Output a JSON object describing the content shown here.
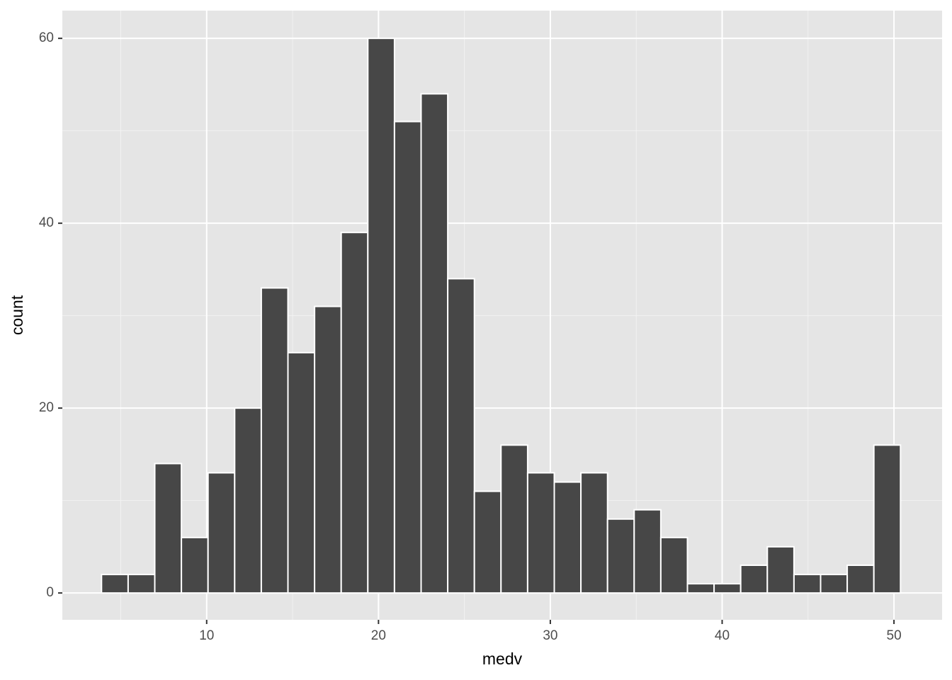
{
  "chart_data": {
    "type": "histogram",
    "x_label": "medv",
    "y_label": "count",
    "bins": [
      3.88,
      5.43,
      6.98,
      8.53,
      10.08,
      11.63,
      13.18,
      14.73,
      16.28,
      17.83,
      19.38,
      20.93,
      22.48,
      24.03,
      25.58,
      27.13,
      28.68,
      30.23,
      31.78,
      33.33,
      34.88,
      36.43,
      37.98,
      39.53,
      41.08,
      42.63,
      44.18,
      45.73,
      47.28,
      48.83,
      50.38
    ],
    "values": [
      2,
      2,
      14,
      6,
      13,
      20,
      33,
      26,
      31,
      39,
      60,
      51,
      54,
      34,
      11,
      16,
      13,
      12,
      13,
      8,
      9,
      6,
      1,
      1,
      3,
      5,
      2,
      2,
      3,
      16
    ],
    "color": "#474747",
    "xlim": [
      1.6,
      52.8
    ],
    "xticks": [
      10,
      20,
      30,
      40,
      50
    ],
    "ylim": [
      -2.9,
      63
    ],
    "yticks": [
      0,
      20,
      40,
      60
    ],
    "grid": true
  }
}
